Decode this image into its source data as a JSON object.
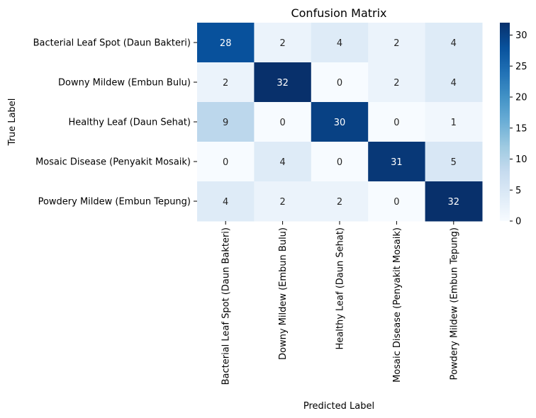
{
  "chart_data": {
    "type": "heatmap",
    "title": "Confusion Matrix",
    "xlabel": "Predicted Label",
    "ylabel": "True Label",
    "row_labels": [
      "Bacterial Leaf Spot (Daun Bakteri)",
      "Downy Mildew (Embun Bulu)",
      "Healthy Leaf (Daun Sehat)",
      "Mosaic Disease (Penyakit Mosaik)",
      "Powdery Mildew (Embun Tepung)"
    ],
    "col_labels": [
      "Bacterial Leaf Spot (Daun Bakteri)",
      "Downy Mildew (Embun Bulu)",
      "Healthy Leaf (Daun Sehat)",
      "Mosaic Disease (Penyakit Mosaik)",
      "Powdery Mildew (Embun Tepung)"
    ],
    "matrix": [
      [
        28,
        2,
        4,
        2,
        4
      ],
      [
        2,
        32,
        0,
        2,
        4
      ],
      [
        9,
        0,
        30,
        0,
        1
      ],
      [
        0,
        4,
        0,
        31,
        5
      ],
      [
        4,
        2,
        2,
        0,
        32
      ]
    ],
    "colorbar": {
      "range": [
        0,
        32
      ],
      "ticks": [
        "0",
        "5",
        "10",
        "15",
        "20",
        "25",
        "30"
      ],
      "colormap": "Blues",
      "colors": [
        "#f7fbff",
        "#deebf7",
        "#c6dbef",
        "#9ecae1",
        "#6baed6",
        "#4292c6",
        "#2171b5",
        "#08519c",
        "#08306b"
      ]
    }
  }
}
